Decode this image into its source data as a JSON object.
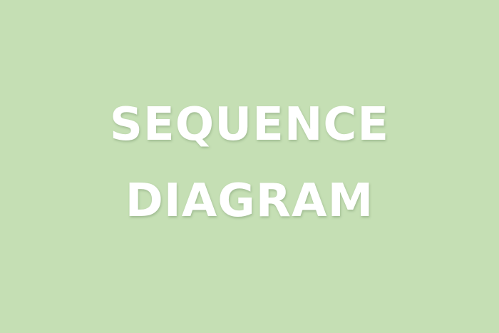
{
  "title": {
    "line1": "SEQUENCE",
    "line2": "DIAGRAM"
  },
  "colors": {
    "background": "#c5dfb4",
    "text": "#ffffff"
  }
}
